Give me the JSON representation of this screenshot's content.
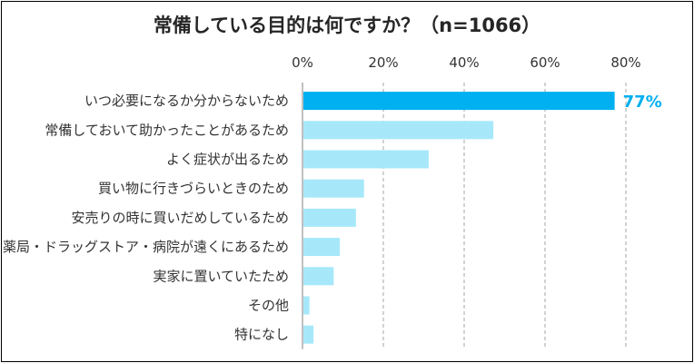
{
  "chart_data": {
    "type": "bar",
    "orientation": "horizontal",
    "title": "常備している目的は何ですか？（n=1066）",
    "xlabel": "",
    "ylabel": "",
    "xlim": [
      0,
      80
    ],
    "tick_labels": [
      "0%",
      "20%",
      "40%",
      "60%",
      "80%"
    ],
    "categories": [
      "いつ必要になるか分からないため",
      "常備しておいて助かったことがあるため",
      "よく症状が出るため",
      "買い物に行きづらいときのため",
      "安売りの時に買いだめしているため",
      "薬局・ドラッグストア・病院が遠くにあるため",
      "実家に置いていたため",
      "その他",
      "特になし"
    ],
    "values": [
      77,
      47,
      31,
      15,
      13,
      9,
      7.5,
      1.5,
      2.5
    ],
    "data_labels": [
      {
        "index": 0,
        "text": "77%"
      }
    ],
    "grid": true,
    "legend": "none"
  },
  "colors": {
    "highlight_bar": "#00b0f0",
    "bar": "#a6e8fa",
    "highlight_label": "#00b0f0",
    "gridline": "#a6a6a6"
  }
}
